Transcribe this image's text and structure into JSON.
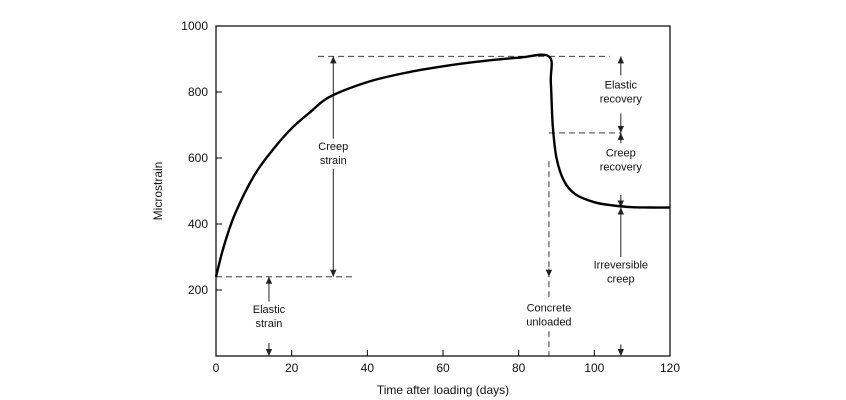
{
  "chart_data": {
    "type": "line",
    "xlabel": "Time after loading (days)",
    "ylabel": "Microstrain",
    "xlim": [
      0,
      120
    ],
    "ylim": [
      0,
      1000
    ],
    "xticks": [
      0,
      20,
      40,
      60,
      80,
      100,
      120
    ],
    "yticks": [
      200,
      400,
      600,
      800,
      1000
    ],
    "grid": false,
    "series": [
      {
        "x": [
          0,
          2,
          5,
          10,
          15,
          20,
          25,
          30,
          40,
          50,
          60,
          70,
          80,
          88,
          88.5,
          89,
          90,
          92,
          95,
          100,
          105,
          110,
          115,
          120
        ],
        "y": [
          240,
          330,
          430,
          545,
          625,
          690,
          740,
          785,
          830,
          858,
          878,
          893,
          904,
          908,
          830,
          700,
          600,
          530,
          490,
          466,
          456,
          451,
          450,
          450
        ]
      }
    ],
    "annotations": [
      {
        "text": [
          "Creep",
          "strain"
        ]
      },
      {
        "text": [
          "Elastic",
          "strain"
        ]
      },
      {
        "text": [
          "Elastic",
          "recovery"
        ]
      },
      {
        "text": [
          "Creep",
          "recovery"
        ]
      },
      {
        "text": [
          "Irreversible",
          "creep"
        ]
      },
      {
        "text": [
          "Concrete",
          "unloaded"
        ]
      }
    ]
  }
}
